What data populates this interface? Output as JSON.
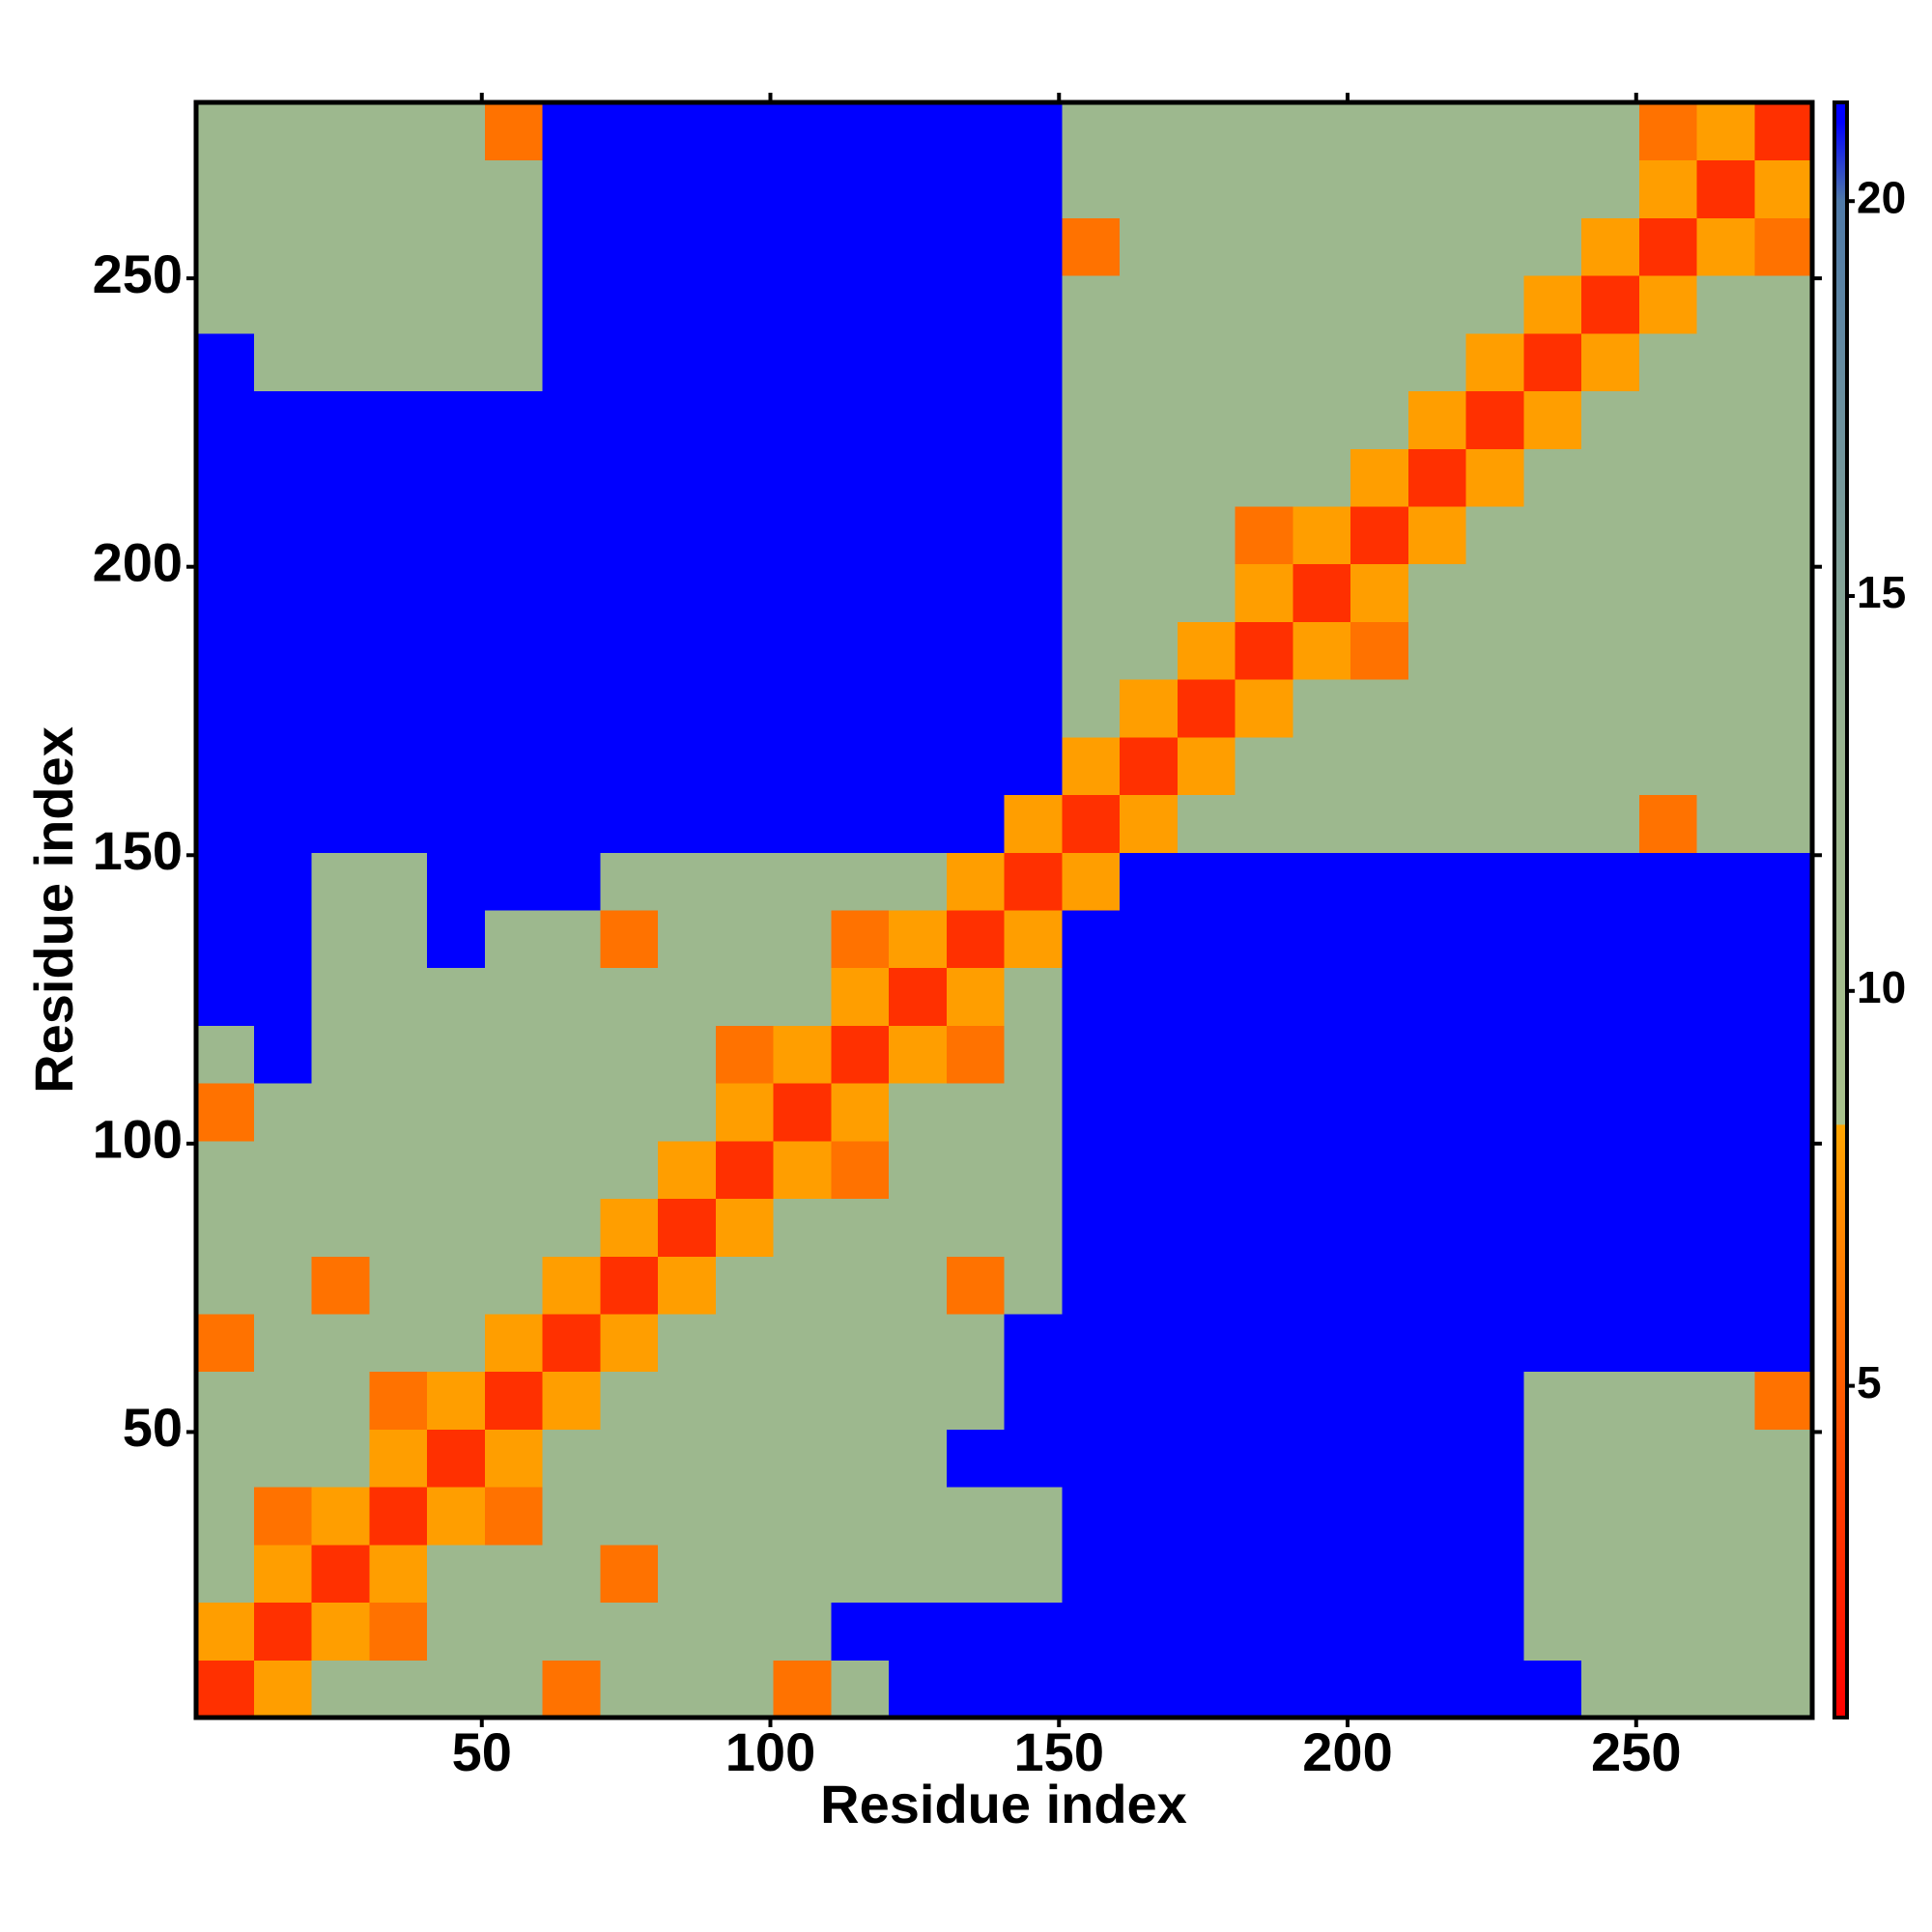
{
  "chart_data": {
    "type": "heatmap",
    "xlabel": "Residue index",
    "ylabel": "Residue index",
    "xlim": [
      0.5,
      280.5
    ],
    "ylim": [
      0.5,
      280.5
    ],
    "xticks": [
      50,
      100,
      150,
      200,
      250
    ],
    "yticks": [
      50,
      100,
      150,
      200,
      250
    ],
    "x_bins": [
      0.5,
      10.5,
      20.5,
      30.5,
      40.5,
      50.5,
      60.5,
      70.5,
      80.5,
      90.5,
      100.5,
      110.5,
      120.5,
      130.5,
      140.5,
      150.5,
      160.5,
      170.5,
      180.5,
      190.5,
      200.5,
      210.5,
      220.5,
      230.5,
      240.5,
      250.5,
      260.5,
      270.5,
      280.5
    ],
    "y_bins": [
      0.5,
      10.5,
      20.5,
      30.5,
      40.5,
      50.5,
      60.5,
      70.5,
      80.5,
      90.5,
      100.5,
      110.5,
      120.5,
      130.5,
      140.5,
      150.5,
      160.5,
      170.5,
      180.5,
      190.5,
      200.5,
      210.5,
      220.5,
      230.5,
      240.5,
      250.5,
      260.5,
      270.5,
      280.5
    ],
    "z": [
      [
        3,
        8,
        12,
        12,
        12,
        12,
        6,
        12,
        12,
        12,
        6,
        12,
        21,
        21,
        21,
        21,
        21,
        21,
        21,
        21,
        21,
        21,
        21,
        21,
        12,
        12,
        12,
        12
      ],
      [
        8,
        3,
        8,
        6,
        12,
        12,
        12,
        12,
        12,
        12,
        12,
        21,
        21,
        21,
        21,
        21,
        21,
        21,
        21,
        21,
        21,
        21,
        21,
        12,
        12,
        12,
        12,
        12
      ],
      [
        12,
        8,
        3,
        8,
        12,
        12,
        12,
        6,
        12,
        12,
        12,
        12,
        12,
        12,
        12,
        21,
        21,
        21,
        21,
        21,
        21,
        21,
        21,
        12,
        12,
        12,
        12,
        12
      ],
      [
        12,
        6,
        8,
        3,
        8,
        6,
        12,
        12,
        12,
        12,
        12,
        12,
        12,
        12,
        12,
        21,
        21,
        21,
        21,
        21,
        21,
        21,
        21,
        12,
        12,
        12,
        12,
        12
      ],
      [
        12,
        12,
        12,
        8,
        3,
        8,
        12,
        12,
        12,
        12,
        12,
        12,
        12,
        21,
        21,
        21,
        21,
        21,
        21,
        21,
        21,
        21,
        21,
        12,
        12,
        12,
        12,
        12
      ],
      [
        12,
        12,
        12,
        6,
        8,
        3,
        8,
        12,
        12,
        12,
        12,
        12,
        12,
        12,
        21,
        21,
        21,
        21,
        21,
        21,
        21,
        21,
        21,
        12,
        12,
        12,
        12,
        6
      ],
      [
        6,
        12,
        12,
        12,
        12,
        8,
        3,
        8,
        12,
        12,
        12,
        12,
        12,
        12,
        21,
        21,
        21,
        21,
        21,
        21,
        21,
        21,
        21,
        21,
        21,
        21,
        21,
        21
      ],
      [
        12,
        12,
        6,
        12,
        12,
        12,
        8,
        3,
        8,
        12,
        12,
        12,
        12,
        6,
        12,
        21,
        21,
        21,
        21,
        21,
        21,
        21,
        21,
        21,
        21,
        21,
        21,
        21
      ],
      [
        12,
        12,
        12,
        12,
        12,
        12,
        12,
        8,
        3,
        8,
        12,
        12,
        12,
        12,
        12,
        21,
        21,
        21,
        21,
        21,
        21,
        21,
        21,
        21,
        21,
        21,
        21,
        21
      ],
      [
        12,
        12,
        12,
        12,
        12,
        12,
        12,
        12,
        8,
        3,
        8,
        6,
        12,
        12,
        12,
        21,
        21,
        21,
        21,
        21,
        21,
        21,
        21,
        21,
        21,
        21,
        21,
        21
      ],
      [
        6,
        12,
        12,
        12,
        12,
        12,
        12,
        12,
        12,
        8,
        3,
        8,
        12,
        12,
        12,
        21,
        21,
        21,
        21,
        21,
        21,
        21,
        21,
        21,
        21,
        21,
        21,
        21
      ],
      [
        12,
        21,
        12,
        12,
        12,
        12,
        12,
        12,
        12,
        6,
        8,
        3,
        8,
        6,
        12,
        21,
        21,
        21,
        21,
        21,
        21,
        21,
        21,
        21,
        21,
        21,
        21,
        21
      ],
      [
        21,
        21,
        12,
        12,
        12,
        12,
        12,
        12,
        12,
        12,
        12,
        8,
        3,
        8,
        12,
        21,
        21,
        21,
        21,
        21,
        21,
        21,
        21,
        21,
        21,
        21,
        21,
        21
      ],
      [
        21,
        21,
        12,
        12,
        21,
        12,
        12,
        6,
        12,
        12,
        12,
        6,
        8,
        3,
        8,
        21,
        21,
        21,
        21,
        21,
        21,
        21,
        21,
        21,
        21,
        21,
        21,
        21
      ],
      [
        21,
        21,
        12,
        12,
        21,
        21,
        21,
        12,
        12,
        12,
        12,
        12,
        12,
        8,
        3,
        8,
        21,
        21,
        21,
        21,
        21,
        21,
        21,
        21,
        21,
        21,
        21,
        21
      ],
      [
        21,
        21,
        21,
        21,
        21,
        21,
        21,
        21,
        21,
        21,
        21,
        21,
        21,
        21,
        8,
        3,
        8,
        12,
        12,
        12,
        12,
        12,
        12,
        12,
        12,
        6,
        12,
        12
      ],
      [
        21,
        21,
        21,
        21,
        21,
        21,
        21,
        21,
        21,
        21,
        21,
        21,
        21,
        21,
        21,
        8,
        3,
        8,
        12,
        12,
        12,
        12,
        12,
        12,
        12,
        12,
        12,
        12
      ],
      [
        21,
        21,
        21,
        21,
        21,
        21,
        21,
        21,
        21,
        21,
        21,
        21,
        21,
        21,
        21,
        12,
        8,
        3,
        8,
        12,
        12,
        12,
        12,
        12,
        12,
        12,
        12,
        12
      ],
      [
        21,
        21,
        21,
        21,
        21,
        21,
        21,
        21,
        21,
        21,
        21,
        21,
        21,
        21,
        21,
        12,
        12,
        8,
        3,
        8,
        6,
        12,
        12,
        12,
        12,
        12,
        12,
        12
      ],
      [
        21,
        21,
        21,
        21,
        21,
        21,
        21,
        21,
        21,
        21,
        21,
        21,
        21,
        21,
        21,
        12,
        12,
        12,
        8,
        3,
        8,
        12,
        12,
        12,
        12,
        12,
        12,
        12
      ],
      [
        21,
        21,
        21,
        21,
        21,
        21,
        21,
        21,
        21,
        21,
        21,
        21,
        21,
        21,
        21,
        12,
        12,
        12,
        6,
        8,
        3,
        8,
        12,
        12,
        12,
        12,
        12,
        12
      ],
      [
        21,
        21,
        21,
        21,
        21,
        21,
        21,
        21,
        21,
        21,
        21,
        21,
        21,
        21,
        21,
        12,
        12,
        12,
        12,
        12,
        8,
        3,
        8,
        12,
        12,
        12,
        12,
        12
      ],
      [
        21,
        21,
        21,
        21,
        21,
        21,
        21,
        21,
        21,
        21,
        21,
        21,
        21,
        21,
        21,
        12,
        12,
        12,
        12,
        12,
        12,
        8,
        3,
        8,
        12,
        12,
        12,
        12
      ],
      [
        21,
        12,
        12,
        12,
        12,
        12,
        21,
        21,
        21,
        21,
        21,
        21,
        21,
        21,
        21,
        12,
        12,
        12,
        12,
        12,
        12,
        12,
        8,
        3,
        8,
        12,
        12,
        12
      ],
      [
        12,
        12,
        12,
        12,
        12,
        12,
        21,
        21,
        21,
        21,
        21,
        21,
        21,
        21,
        21,
        12,
        12,
        12,
        12,
        12,
        12,
        12,
        12,
        8,
        3,
        8,
        12,
        12
      ],
      [
        12,
        12,
        12,
        12,
        12,
        12,
        21,
        21,
        21,
        21,
        21,
        21,
        21,
        21,
        21,
        6,
        12,
        12,
        12,
        12,
        12,
        12,
        12,
        12,
        8,
        3,
        8,
        6
      ],
      [
        12,
        12,
        12,
        12,
        12,
        12,
        21,
        21,
        21,
        21,
        21,
        21,
        21,
        21,
        21,
        12,
        12,
        12,
        12,
        12,
        12,
        12,
        12,
        12,
        12,
        8,
        3,
        8
      ],
      [
        12,
        12,
        12,
        12,
        12,
        6,
        21,
        21,
        21,
        21,
        21,
        21,
        21,
        21,
        21,
        12,
        12,
        12,
        12,
        12,
        12,
        12,
        12,
        12,
        12,
        6,
        8,
        3
      ]
    ],
    "colorscale": [
      [
        0.8,
        "#ff0000"
      ],
      [
        8.3,
        "#ffa500"
      ],
      [
        8.31,
        "#a9c28c"
      ],
      [
        13,
        "#9ab58f"
      ],
      [
        20,
        "#4f7aa8"
      ],
      [
        21,
        "#0000ff"
      ]
    ],
    "colorbar": {
      "clim": [
        0.8,
        21.25
      ],
      "ticks": [
        5,
        10,
        15,
        20
      ]
    }
  }
}
